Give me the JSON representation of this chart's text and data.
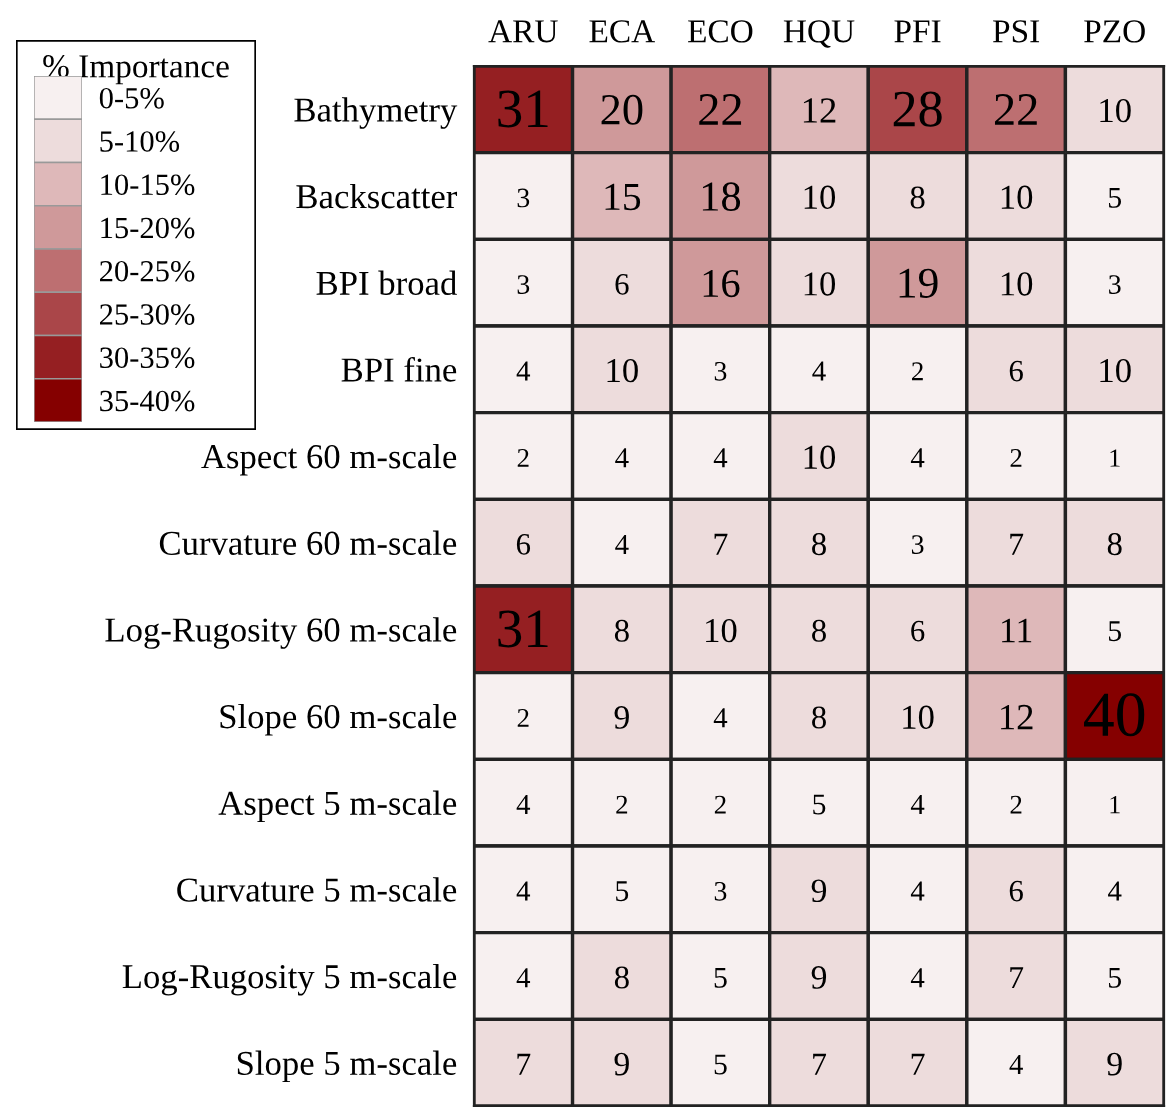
{
  "chart_data": {
    "type": "heatmap",
    "clabel": "% Importance",
    "categories": [
      "ARU",
      "ECA",
      "ECO",
      "HQU",
      "PFI",
      "PSI",
      "PZO"
    ],
    "y_categories": [
      "Bathymetry",
      "Backscatter",
      "BPI broad",
      "BPI fine",
      "Aspect 60 m-scale",
      "Curvature 60 m-scale",
      "Log-Rugosity 60 m-scale",
      "Slope 60 m-scale",
      "Aspect 5 m-scale",
      "Curvature 5 m-scale",
      "Log-Rugosity 5 m-scale",
      "Slope 5 m-scale"
    ],
    "cells": [
      [
        31,
        20,
        22,
        12,
        28,
        22,
        10
      ],
      [
        3,
        15,
        18,
        10,
        8,
        10,
        5
      ],
      [
        3,
        6,
        16,
        10,
        19,
        10,
        3
      ],
      [
        4,
        10,
        3,
        4,
        2,
        6,
        10
      ],
      [
        2,
        4,
        4,
        10,
        4,
        2,
        1
      ],
      [
        6,
        4,
        7,
        8,
        3,
        7,
        8
      ],
      [
        31,
        8,
        10,
        8,
        6,
        11,
        5
      ],
      [
        2,
        9,
        4,
        8,
        10,
        12,
        40
      ],
      [
        4,
        2,
        2,
        5,
        4,
        2,
        1
      ],
      [
        4,
        5,
        3,
        9,
        4,
        6,
        4
      ],
      [
        4,
        8,
        5,
        9,
        4,
        7,
        5
      ],
      [
        7,
        9,
        5,
        7,
        7,
        4,
        9
      ]
    ],
    "data_labels": true,
    "clim": [
      0,
      40
    ],
    "cticks": [
      {
        "value": 2.5,
        "label": "0-5%"
      },
      {
        "value": 7.5,
        "label": "5-10%"
      },
      {
        "value": 12.5,
        "label": "10-15%"
      },
      {
        "value": 17.5,
        "label": "15-20%"
      },
      {
        "value": 22.5,
        "label": "20-25%"
      },
      {
        "value": 27.5,
        "label": "25-30%"
      },
      {
        "value": 32.5,
        "label": "30-35%"
      },
      {
        "value": 37.5,
        "label": "35-40%"
      }
    ],
    "colors": [
      "#f7f0f0",
      "#eddcdc",
      "#deb8b9",
      "#cf999a",
      "#bd6f71",
      "#aa4649",
      "#951f22",
      "#850000"
    ]
  }
}
